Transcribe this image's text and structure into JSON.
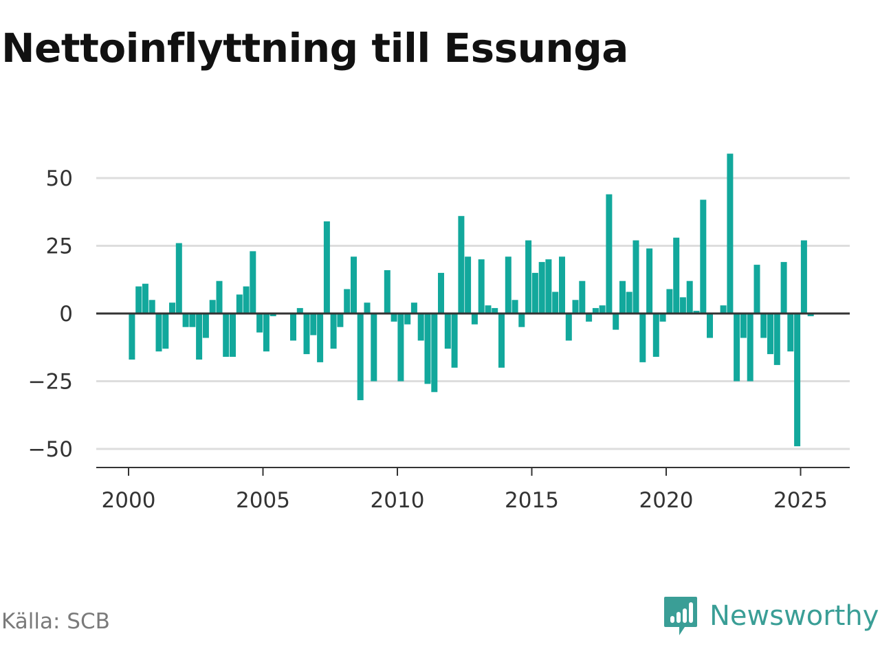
{
  "title": "Nettoinflyttning till Essunga",
  "source": "Källa: SCB",
  "brand": {
    "name": "Newsworthy",
    "icon": "newsworthy-logo-icon"
  },
  "colors": {
    "bar": "#12a89c",
    "zero_line": "#333333",
    "grid": "#dddddd",
    "axis": "#333333",
    "brand": "#3a9e96"
  },
  "chart_data": {
    "type": "bar",
    "title": "Nettoinflyttning till Essunga",
    "xlabel": "",
    "ylabel": "",
    "ylim": [
      -55,
      60
    ],
    "xlim": [
      1998.8,
      2026.2
    ],
    "grid": true,
    "x_ticks": [
      2000,
      2005,
      2010,
      2015,
      2020,
      2025
    ],
    "y_ticks": [
      50,
      25,
      0,
      -25,
      -50
    ],
    "y_tick_labels": [
      "50",
      "25",
      "0",
      "−25",
      "−50"
    ],
    "series": [
      {
        "start": 2000.125,
        "step": 0.25,
        "values": [
          -17,
          10,
          11,
          5,
          -14,
          -13,
          4,
          26,
          -5,
          -5,
          -17,
          -9,
          5,
          12,
          -16,
          -16,
          7,
          10,
          23,
          -7,
          -14,
          -1,
          0,
          0,
          -10,
          2,
          -15,
          -8,
          -18,
          34,
          -13,
          -5,
          9,
          21,
          -32,
          4,
          -25,
          0,
          16,
          -3,
          -25,
          -4,
          4,
          -10,
          -26,
          -29,
          15,
          -13,
          -20,
          36,
          21,
          -4,
          20,
          3,
          2,
          -20,
          21,
          5,
          -5,
          27,
          15,
          19,
          20,
          8,
          21,
          -10,
          5,
          12,
          -3,
          2,
          3,
          44,
          -6,
          12,
          8,
          27,
          -18,
          24,
          -16,
          -3,
          9,
          28,
          6,
          12,
          1,
          42,
          -9,
          0,
          3,
          59,
          -25,
          -9,
          -25,
          18,
          -9,
          -15,
          -19,
          19,
          -14,
          -49,
          27,
          -1
        ]
      }
    ]
  }
}
